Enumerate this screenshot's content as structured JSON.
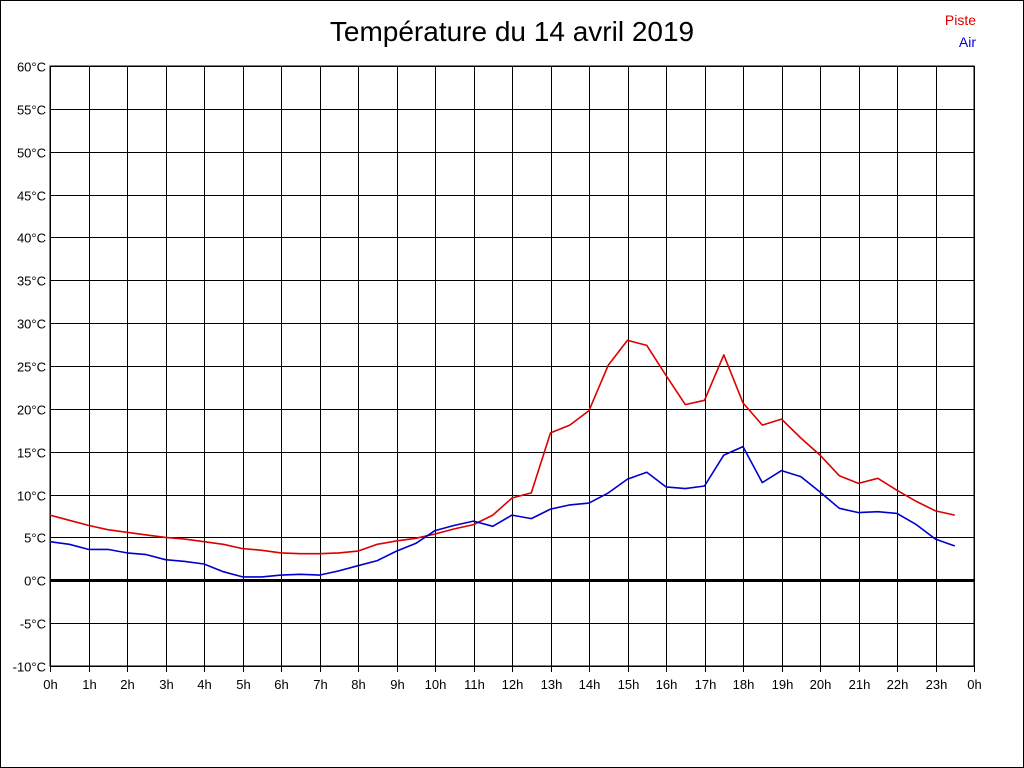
{
  "chart_data": {
    "type": "line",
    "title": "Température du 14 avril 2019",
    "xlabel": "",
    "ylabel": "",
    "ylim": [
      -10,
      60
    ],
    "xlim": [
      0,
      24
    ],
    "grid": true,
    "legend_position": "top-right",
    "zero_line": true,
    "x_ticks": [
      "0h",
      "1h",
      "2h",
      "3h",
      "4h",
      "5h",
      "6h",
      "7h",
      "8h",
      "9h",
      "10h",
      "11h",
      "12h",
      "13h",
      "14h",
      "15h",
      "16h",
      "17h",
      "18h",
      "19h",
      "20h",
      "21h",
      "22h",
      "23h",
      "0h"
    ],
    "y_ticks": [
      "-10°C",
      "-5°C",
      "0°C",
      "5°C",
      "10°C",
      "15°C",
      "20°C",
      "25°C",
      "30°C",
      "35°C",
      "40°C",
      "45°C",
      "50°C",
      "55°C",
      "60°C"
    ],
    "x": [
      0,
      0.5,
      1,
      1.5,
      2,
      2.5,
      3,
      3.5,
      4,
      4.5,
      5,
      5.5,
      6,
      6.5,
      7,
      7.5,
      8,
      8.5,
      9,
      9.5,
      10,
      10.5,
      11,
      11.5,
      12,
      12.5,
      13,
      13.5,
      14,
      14.5,
      15,
      15.5,
      16,
      16.5,
      17,
      17.5,
      18,
      18.5,
      19,
      19.5,
      20,
      20.5,
      21,
      21.5,
      22,
      22.5,
      23,
      23.5
    ],
    "series": [
      {
        "name": "Piste",
        "color": "#dd0000",
        "values": [
          7.6,
          7.0,
          6.4,
          5.9,
          5.6,
          5.3,
          5.0,
          4.8,
          4.5,
          4.2,
          3.7,
          3.5,
          3.2,
          3.1,
          3.1,
          3.2,
          3.4,
          4.2,
          4.6,
          4.9,
          5.4,
          6.0,
          6.5,
          7.6,
          9.6,
          10.2,
          17.2,
          18.1,
          19.8,
          25.1,
          28.0,
          27.4,
          23.9,
          20.5,
          21.0,
          26.3,
          20.7,
          18.1,
          18.8,
          16.6,
          14.6,
          12.2,
          11.3,
          11.9,
          10.5,
          9.2,
          8.1,
          7.6
        ]
      },
      {
        "name": "Air",
        "color": "#0000cc",
        "values": [
          4.5,
          4.2,
          3.6,
          3.6,
          3.2,
          3.0,
          2.4,
          2.2,
          1.9,
          1.0,
          0.4,
          0.4,
          0.6,
          0.7,
          0.6,
          1.1,
          1.7,
          2.3,
          3.4,
          4.3,
          5.8,
          6.4,
          6.9,
          6.3,
          7.6,
          7.2,
          8.3,
          8.8,
          9.0,
          10.2,
          11.8,
          12.6,
          10.9,
          10.7,
          11.0,
          14.6,
          15.6,
          11.4,
          12.8,
          12.1,
          10.3,
          8.4,
          7.9,
          8.0,
          7.8,
          6.5,
          4.8,
          4.0
        ]
      }
    ]
  }
}
